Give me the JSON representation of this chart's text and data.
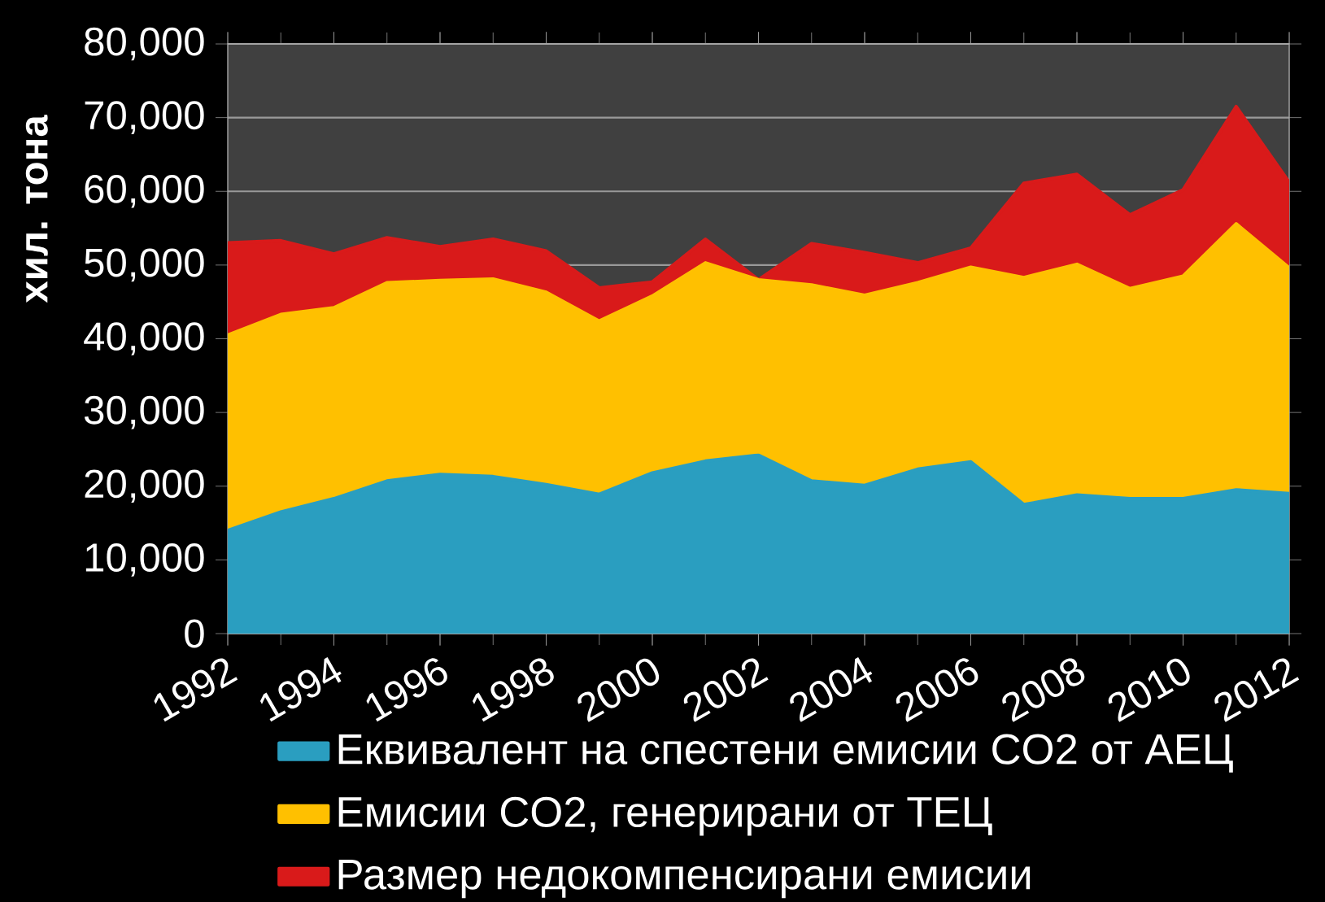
{
  "chart_data": {
    "type": "area",
    "stacked": true,
    "ylabel": "хил. тона",
    "x": [
      1992,
      1993,
      1994,
      1995,
      1996,
      1997,
      1998,
      1999,
      2000,
      2001,
      2002,
      2003,
      2004,
      2005,
      2006,
      2007,
      2008,
      2009,
      2010,
      2011,
      2012
    ],
    "xlim": [
      1992,
      2012
    ],
    "xticks": [
      1992,
      1994,
      1996,
      1998,
      2000,
      2002,
      2004,
      2006,
      2008,
      2010,
      2012
    ],
    "ylim": [
      0,
      80000
    ],
    "yticks": [
      {
        "value": 0,
        "label": "0"
      },
      {
        "value": 10000,
        "label": "10,000"
      },
      {
        "value": 20000,
        "label": "20,000"
      },
      {
        "value": 30000,
        "label": "30,000"
      },
      {
        "value": 40000,
        "label": "40,000"
      },
      {
        "value": 50000,
        "label": "50,000"
      },
      {
        "value": 60000,
        "label": "60,000"
      },
      {
        "value": 70000,
        "label": "70,000"
      },
      {
        "value": 80000,
        "label": "80,000"
      }
    ],
    "grid": "y",
    "legend": "bottom",
    "series": [
      {
        "name": "Еквивалент на спестени емисии CO2 от АЕЦ",
        "color": "#2a9ec0",
        "values": [
          14000,
          16500,
          18300,
          20700,
          21600,
          21300,
          20200,
          18900,
          21800,
          23400,
          24200,
          20700,
          20100,
          22300,
          23300,
          17500,
          18800,
          18300,
          18300,
          19500,
          19000
        ]
      },
      {
        "name": "Емисии CO2, генерирани от ТЕЦ",
        "color": "#ffc000",
        "values": [
          26500,
          26800,
          25900,
          26900,
          26300,
          26800,
          26100,
          23500,
          24000,
          26900,
          23800,
          26600,
          25800,
          25300,
          26400,
          30800,
          31300,
          28500,
          30200,
          36100,
          30600
        ]
      },
      {
        "name": "Размер недокомпенсирани емисии",
        "color": "#d91a1a",
        "values": [
          12500,
          10000,
          7300,
          6100,
          4600,
          5400,
          5600,
          4500,
          1900,
          3200,
          0,
          5600,
          5800,
          2700,
          2600,
          12800,
          12200,
          10000,
          11700,
          15900,
          11600
        ]
      }
    ]
  }
}
